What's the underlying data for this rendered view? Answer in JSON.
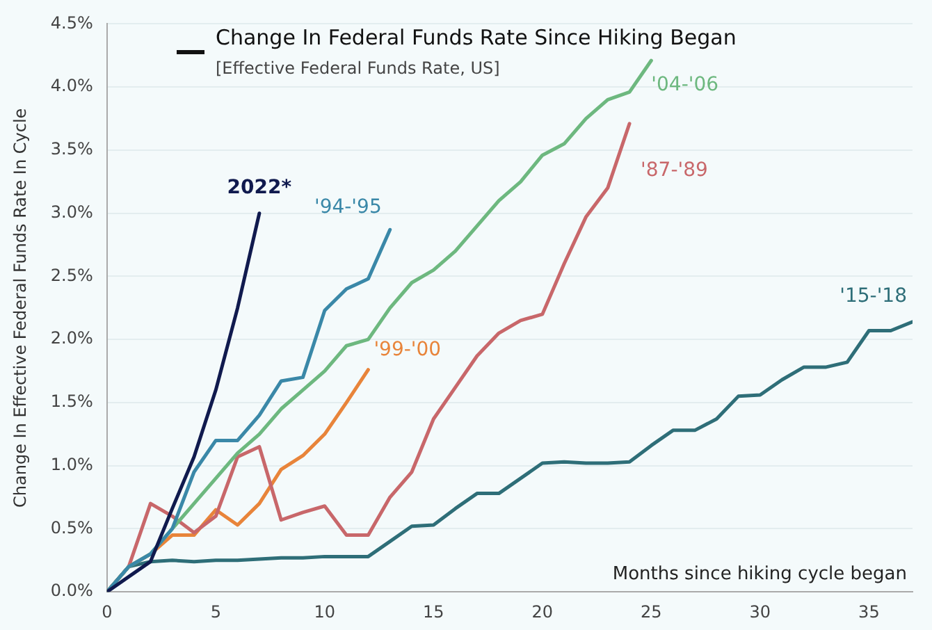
{
  "chart_data": {
    "type": "line",
    "title": "Change In Federal Funds Rate Since Hiking Began",
    "subtitle": "[Effective Federal Funds Rate, US]",
    "xlabel": "Months since hiking cycle began",
    "ylabel": "Change In Effective Federal Funds Rate In Cycle",
    "xlim": [
      0,
      37
    ],
    "xticks": [
      0,
      5,
      10,
      15,
      20,
      25,
      30,
      35
    ],
    "ylim": [
      0,
      4.5
    ],
    "yticks": [
      {
        "value": 0,
        "label": "0.0%"
      },
      {
        "value": 0.5,
        "label": "0.5%"
      },
      {
        "value": 1,
        "label": "1.0%"
      },
      {
        "value": 1.5,
        "label": "1.5%"
      },
      {
        "value": 2,
        "label": "2.0%"
      },
      {
        "value": 2.5,
        "label": "2.5%"
      },
      {
        "value": 3,
        "label": "3.0%"
      },
      {
        "value": 3.5,
        "label": "3.5%"
      },
      {
        "value": 4,
        "label": "4.0%"
      },
      {
        "value": 4.5,
        "label": "4.5%"
      }
    ],
    "grid": "y",
    "marker": "none",
    "line_style": "solid",
    "legend": false,
    "series": [
      {
        "name": "2022*",
        "color": "#101a4e",
        "x": [
          0,
          1,
          2,
          3,
          4,
          5,
          6,
          7
        ],
        "values": [
          0,
          0.12,
          0.24,
          0.66,
          1.07,
          1.6,
          2.25,
          3.0
        ]
      },
      {
        "name": "'94-'95",
        "color": "#3a88a8",
        "x": [
          0,
          1,
          2,
          3,
          4,
          5,
          6,
          7,
          8,
          9,
          10,
          11,
          12,
          13
        ],
        "values": [
          0,
          0.2,
          0.3,
          0.5,
          0.95,
          1.2,
          1.2,
          1.4,
          1.67,
          1.7,
          2.23,
          2.4,
          2.48,
          2.87
        ]
      },
      {
        "name": "'04-'06",
        "color": "#6db87f",
        "x": [
          0,
          1,
          2,
          3,
          4,
          5,
          6,
          7,
          8,
          9,
          10,
          11,
          12,
          13,
          14,
          15,
          16,
          17,
          18,
          19,
          20,
          21,
          22,
          23,
          24,
          25
        ],
        "values": [
          0,
          0.2,
          0.3,
          0.5,
          0.7,
          0.9,
          1.1,
          1.25,
          1.45,
          1.6,
          1.75,
          1.95,
          2.0,
          2.25,
          2.45,
          2.55,
          2.7,
          2.9,
          3.1,
          3.25,
          3.46,
          3.55,
          3.75,
          3.9,
          3.96,
          4.21
        ]
      },
      {
        "name": "'87-'89",
        "color": "#c8676a",
        "x": [
          0,
          1,
          2,
          3,
          4,
          5,
          6,
          7,
          8,
          9,
          10,
          11,
          12,
          13,
          14,
          15,
          16,
          17,
          18,
          19,
          20,
          21,
          22,
          23,
          24
        ],
        "values": [
          0,
          0.2,
          0.7,
          0.6,
          0.47,
          0.6,
          1.07,
          1.15,
          0.57,
          0.63,
          0.68,
          0.45,
          0.45,
          0.75,
          0.95,
          1.37,
          1.62,
          1.87,
          2.05,
          2.15,
          2.2,
          2.6,
          2.97,
          3.2,
          3.71
        ]
      },
      {
        "name": "'99-'00",
        "color": "#e8843a",
        "x": [
          0,
          1,
          2,
          3,
          4,
          5,
          6,
          7,
          8,
          9,
          10,
          11,
          12
        ],
        "values": [
          0,
          0.2,
          0.3,
          0.45,
          0.45,
          0.65,
          0.53,
          0.7,
          0.97,
          1.08,
          1.25,
          1.5,
          1.76
        ]
      },
      {
        "name": "'15-'18",
        "color": "#2e6e78",
        "x": [
          0,
          1,
          2,
          3,
          4,
          5,
          6,
          7,
          8,
          9,
          10,
          11,
          12,
          13,
          14,
          15,
          16,
          17,
          18,
          19,
          20,
          21,
          22,
          23,
          24,
          25,
          26,
          27,
          28,
          29,
          30,
          31,
          32,
          33,
          34,
          35,
          36,
          37
        ],
        "values": [
          0,
          0.2,
          0.24,
          0.25,
          0.24,
          0.25,
          0.25,
          0.26,
          0.27,
          0.27,
          0.28,
          0.28,
          0.28,
          0.4,
          0.52,
          0.53,
          0.66,
          0.78,
          0.78,
          0.9,
          1.02,
          1.03,
          1.02,
          1.02,
          1.03,
          1.16,
          1.28,
          1.28,
          1.37,
          1.55,
          1.56,
          1.68,
          1.78,
          1.78,
          1.82,
          2.07,
          2.07,
          2.14
        ]
      }
    ]
  }
}
